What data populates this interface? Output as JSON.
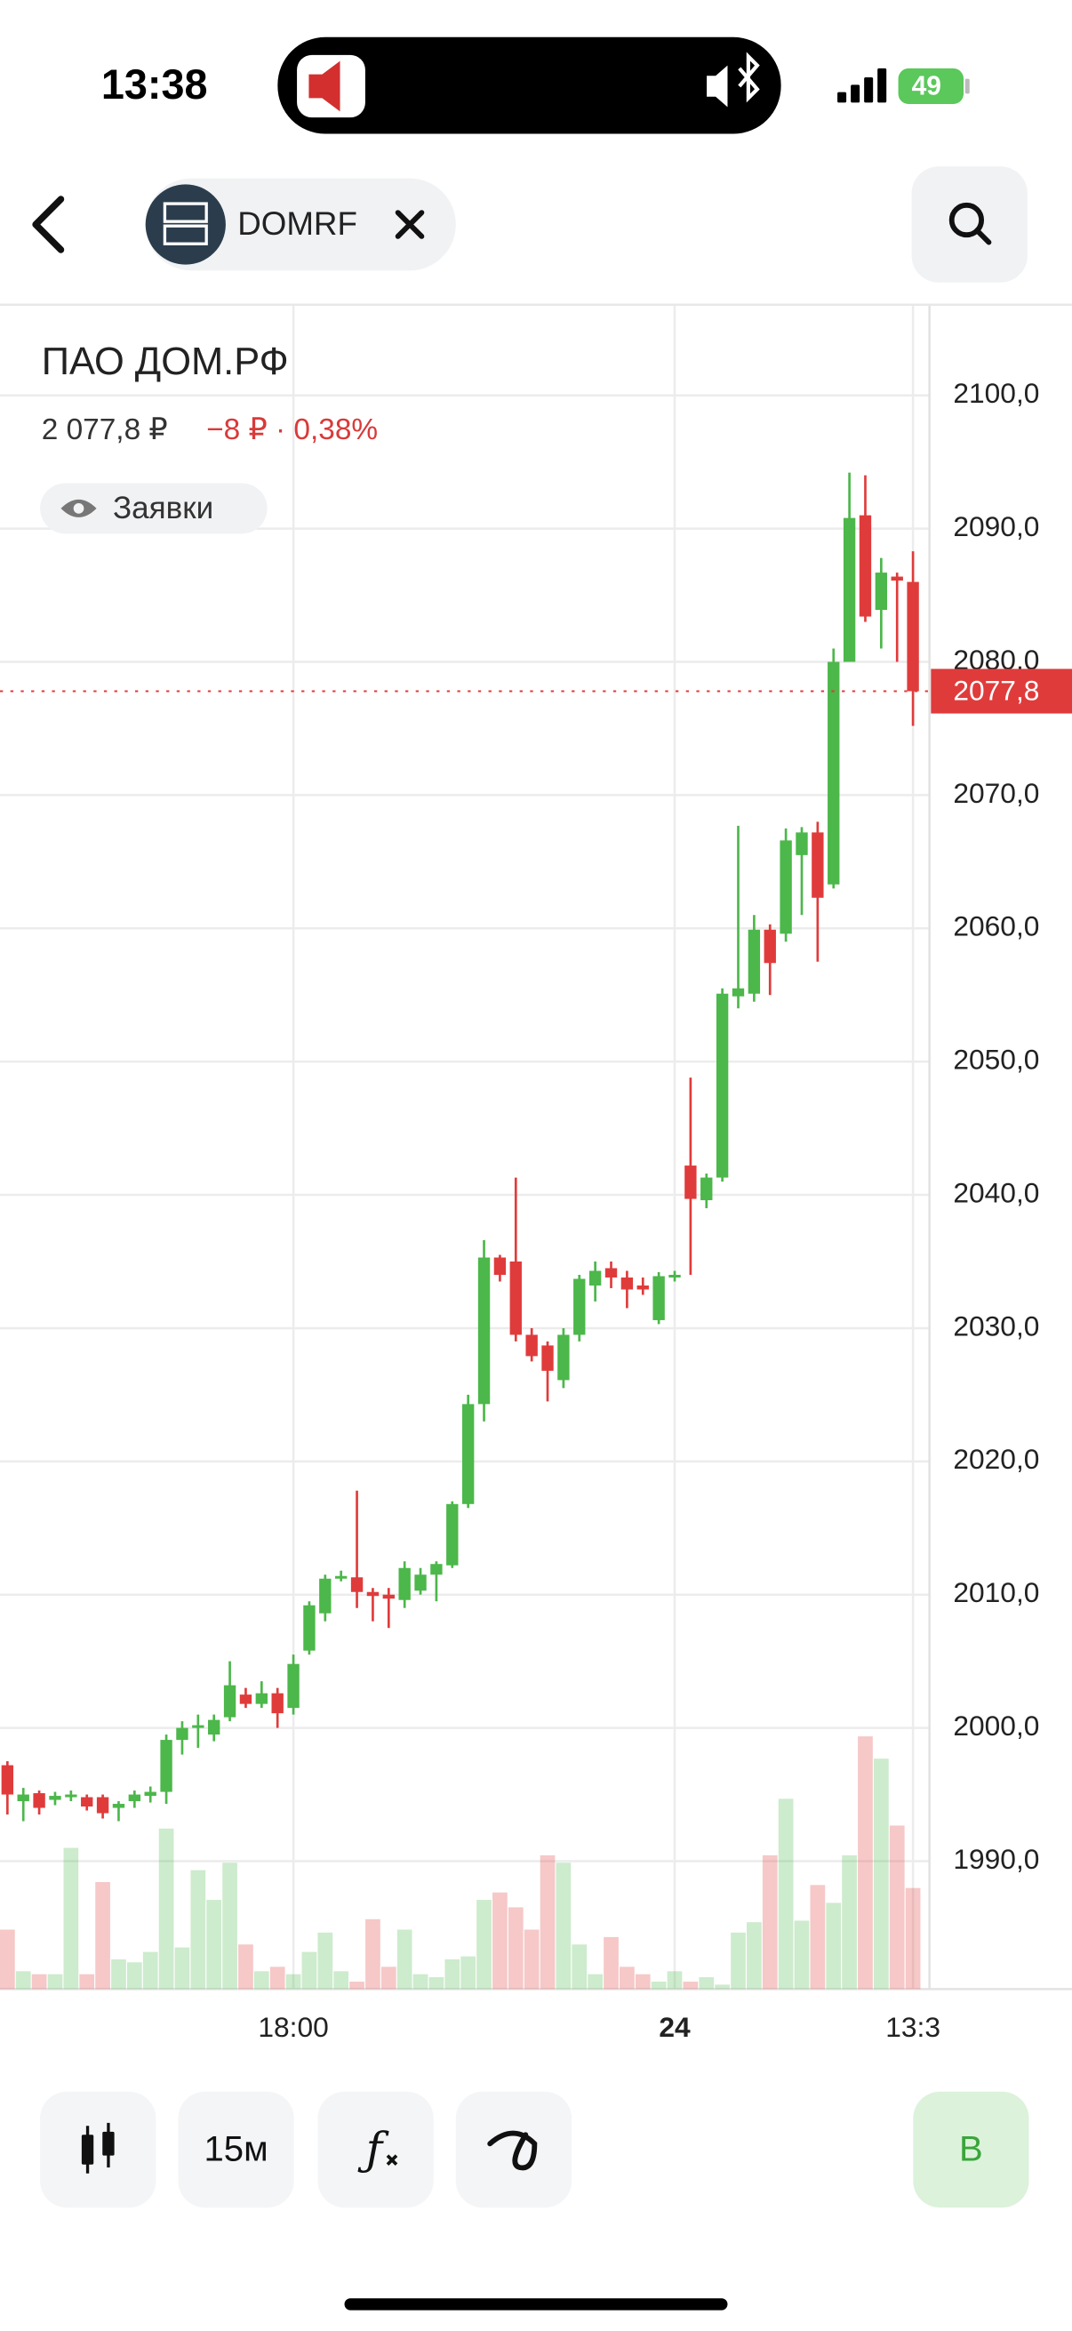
{
  "status_bar": {
    "time": "13:38",
    "battery": "49"
  },
  "header": {
    "ticker": "DOMRF"
  },
  "chart_data": {
    "type": "candlestick",
    "title": "ПАО ДОМ.РФ",
    "price": "2 077,8 ₽",
    "change": "−8 ₽ · 0,38%",
    "orders_button": "Заявки",
    "categories": [
      null,
      null,
      null,
      null,
      null,
      null,
      null,
      null,
      null,
      null,
      null,
      null,
      null,
      null,
      null,
      null,
      null,
      null,
      "18:00",
      null,
      null,
      null,
      null,
      null,
      null,
      null,
      null,
      null,
      null,
      null,
      null,
      null,
      null,
      null,
      null,
      null,
      null,
      null,
      null,
      null,
      null,
      null,
      "24",
      null,
      null,
      null,
      null,
      null,
      null,
      null,
      null,
      null,
      null,
      null,
      null,
      null,
      null,
      "13:3"
    ],
    "open": [
      1997.2,
      1994.5,
      1995.1,
      1994.6,
      1994.8,
      1994.8,
      1994.8,
      1994.0,
      1994.5,
      1994.9,
      1995.2,
      1999.1,
      2000.0,
      1999.5,
      2000.8,
      2002.5,
      2001.8,
      2002.6,
      2001.5,
      2005.8,
      2008.6,
      2011.2,
      2011.3,
      2010.2,
      2010.0,
      2009.6,
      2010.3,
      2011.5,
      2012.2,
      2016.8,
      2024.3,
      2035.3,
      2035.0,
      2029.5,
      2028.7,
      2026.1,
      2029.5,
      2033.2,
      2034.5,
      2033.8,
      2033.2,
      2030.6,
      2033.8,
      2042.2,
      2039.6,
      2041.3,
      2054.9,
      2055.1,
      2059.9,
      2059.6,
      2065.5,
      2067.2,
      2063.3,
      2080.0,
      2091.0,
      2083.9,
      2086.4,
      2086.0
    ],
    "high": [
      1997.5,
      1995.5,
      1995.3,
      1995.2,
      1995.3,
      1995.0,
      1995.0,
      1994.5,
      1995.3,
      1995.6,
      1999.5,
      2000.5,
      2001.0,
      2001.0,
      2005.0,
      2003.0,
      2003.5,
      2003.0,
      2005.5,
      2009.5,
      2011.5,
      2011.8,
      2017.8,
      2010.5,
      2010.5,
      2012.5,
      2012.0,
      2012.5,
      2017.0,
      2025.0,
      2036.6,
      2035.5,
      2041.3,
      2030.0,
      2029.0,
      2030.0,
      2034.0,
      2035.0,
      2035.0,
      2034.3,
      2033.8,
      2034.2,
      2034.3,
      2048.8,
      2041.6,
      2055.5,
      2067.7,
      2061.0,
      2060.3,
      2067.5,
      2067.6,
      2068.0,
      2081.0,
      2094.2,
      2094.0,
      2087.8,
      2086.7,
      2088.3
    ],
    "low": [
      1993.5,
      1993.0,
      1993.5,
      1994.2,
      1994.5,
      1993.8,
      1993.2,
      1993.0,
      1994.0,
      1994.4,
      1994.3,
      1998.0,
      1998.5,
      1999.0,
      2000.5,
      2001.5,
      2001.5,
      2000.0,
      2001.0,
      2005.5,
      2008.0,
      2011.0,
      2009.0,
      2008.0,
      2007.5,
      2009.0,
      2010.0,
      2009.5,
      2012.0,
      2016.5,
      2023.0,
      2033.5,
      2029.0,
      2027.5,
      2024.5,
      2025.5,
      2029.0,
      2032.0,
      2033.0,
      2031.5,
      2032.5,
      2030.3,
      2033.5,
      2034.0,
      2039.0,
      2041.0,
      2054.0,
      2054.5,
      2055.0,
      2059.0,
      2061.0,
      2057.5,
      2063.0,
      2080.0,
      2083.0,
      2081.0,
      2080.0,
      2075.2
    ],
    "close": [
      1995.0,
      1995.0,
      1994.0,
      1994.9,
      1995.0,
      1994.1,
      1993.6,
      1994.3,
      1995.0,
      1995.2,
      1999.1,
      2000.0,
      2000.2,
      2000.6,
      2003.2,
      2001.8,
      2002.6,
      2001.1,
      2004.8,
      2009.2,
      2011.2,
      2011.4,
      2010.2,
      2009.9,
      2009.7,
      2012.0,
      2011.5,
      2012.3,
      2016.8,
      2024.3,
      2035.3,
      2034.0,
      2029.5,
      2027.9,
      2026.8,
      2029.5,
      2033.7,
      2034.3,
      2033.8,
      2032.9,
      2032.9,
      2033.9,
      2034.0,
      2039.7,
      2041.3,
      2055.1,
      2055.5,
      2059.9,
      2057.4,
      2066.6,
      2067.2,
      2062.3,
      2080.0,
      2090.8,
      2083.4,
      2086.7,
      2086.1,
      2077.8
    ],
    "volume": [
      40,
      12,
      10,
      10,
      95,
      10,
      72,
      20,
      18,
      25,
      108,
      28,
      80,
      60,
      85,
      30,
      12,
      15,
      10,
      25,
      38,
      12,
      5,
      47,
      15,
      40,
      10,
      8,
      20,
      22,
      60,
      65,
      55,
      40,
      90,
      85,
      30,
      10,
      35,
      15,
      10,
      5,
      12,
      5,
      8,
      3,
      38,
      45,
      90,
      128,
      46,
      70,
      58,
      90,
      170,
      155,
      110,
      68
    ],
    "up_color": "#4cb74a",
    "down_color": "#e03b3b",
    "ylim": [
      1980.4,
      2106.8
    ],
    "yticks": [
      {
        "value": 1990,
        "label": "1990,0"
      },
      {
        "value": 2000,
        "label": "2000,0"
      },
      {
        "value": 2010,
        "label": "2010,0"
      },
      {
        "value": 2020,
        "label": "2020,0"
      },
      {
        "value": 2030,
        "label": "2030,0"
      },
      {
        "value": 2040,
        "label": "2040,0"
      },
      {
        "value": 2050,
        "label": "2050,0"
      },
      {
        "value": 2060,
        "label": "2060,0"
      },
      {
        "value": 2070,
        "label": "2070,0"
      },
      {
        "value": 2080,
        "label": "2080,0"
      },
      {
        "value": 2090,
        "label": "2090,0"
      },
      {
        "value": 2100,
        "label": "2100,0"
      }
    ],
    "last_price": {
      "value": 2077.8,
      "label": "2077,8"
    },
    "grid": true
  },
  "toolbar": {
    "interval": "15м",
    "buy": "В"
  }
}
